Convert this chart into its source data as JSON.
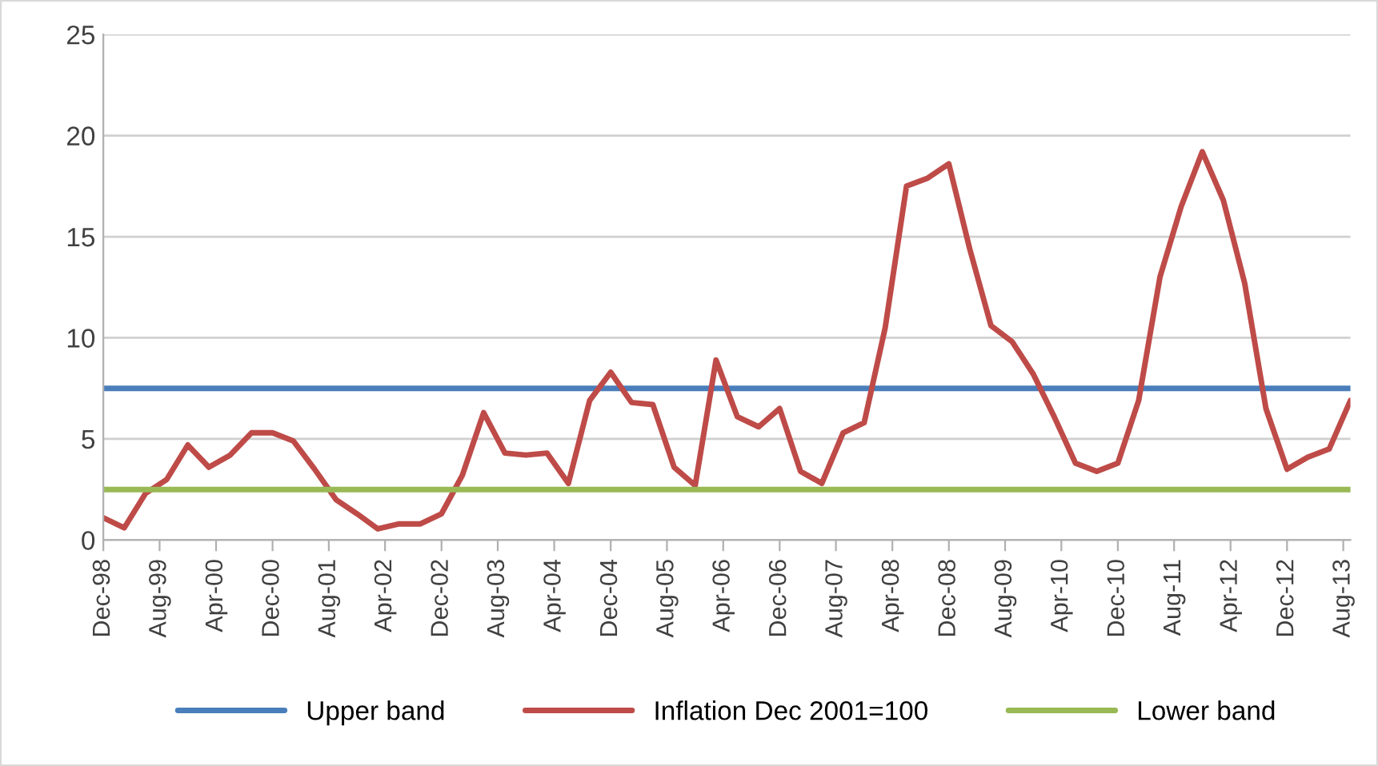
{
  "chart_data": {
    "type": "line",
    "x": [
      "1998-12",
      "1999-03",
      "1999-06",
      "1999-09",
      "1999-12",
      "2000-03",
      "2000-06",
      "2000-09",
      "2000-12",
      "2001-03",
      "2001-06",
      "2001-09",
      "2001-12",
      "2002-03",
      "2002-06",
      "2002-09",
      "2002-12",
      "2003-03",
      "2003-06",
      "2003-09",
      "2003-12",
      "2004-03",
      "2004-06",
      "2004-09",
      "2004-12",
      "2005-03",
      "2005-06",
      "2005-09",
      "2005-12",
      "2006-03",
      "2006-06",
      "2006-09",
      "2006-12",
      "2007-03",
      "2007-06",
      "2007-09",
      "2007-12",
      "2008-03",
      "2008-06",
      "2008-09",
      "2008-12",
      "2009-03",
      "2009-06",
      "2009-09",
      "2009-12",
      "2010-03",
      "2010-06",
      "2010-09",
      "2010-12",
      "2011-03",
      "2011-06",
      "2011-09",
      "2011-12",
      "2012-03",
      "2012-06",
      "2012-09",
      "2012-12",
      "2013-03",
      "2013-06",
      "2013-09"
    ],
    "series": [
      {
        "name": "Upper band",
        "color": "#4a7ebb",
        "x": [
          "1998-12",
          "2013-09"
        ],
        "values": [
          7.5,
          7.5
        ]
      },
      {
        "name": "Inflation Dec 2001=100",
        "color": "#be4b48",
        "values": [
          1.1,
          0.6,
          2.3,
          3.0,
          4.7,
          3.6,
          4.2,
          5.3,
          5.3,
          4.9,
          3.5,
          2.0,
          1.3,
          0.55,
          0.8,
          0.8,
          1.3,
          3.2,
          6.3,
          4.3,
          4.2,
          4.3,
          2.8,
          6.9,
          8.3,
          6.8,
          6.7,
          3.6,
          2.7,
          8.9,
          6.1,
          5.6,
          6.5,
          3.4,
          2.8,
          5.3,
          5.8,
          10.5,
          17.5,
          17.9,
          18.6,
          14.4,
          10.6,
          9.8,
          8.2,
          6.1,
          3.8,
          3.4,
          3.8,
          6.9,
          13.0,
          16.5,
          19.2,
          16.8,
          12.7,
          6.5,
          3.5,
          4.1,
          4.5,
          6.9
        ]
      },
      {
        "name": "Lower band",
        "color": "#98b954",
        "x": [
          "1998-12",
          "2013-09"
        ],
        "values": [
          2.5,
          2.5
        ]
      }
    ],
    "xlim": [
      "1998-12",
      "2013-09"
    ],
    "xticks": [
      {
        "value": "1998-12",
        "label": "Dec-98"
      },
      {
        "value": "1999-08",
        "label": "Aug-99"
      },
      {
        "value": "2000-04",
        "label": "Apr-00"
      },
      {
        "value": "2000-12",
        "label": "Dec-00"
      },
      {
        "value": "2001-08",
        "label": "Aug-01"
      },
      {
        "value": "2002-04",
        "label": "Apr-02"
      },
      {
        "value": "2002-12",
        "label": "Dec-02"
      },
      {
        "value": "2003-08",
        "label": "Aug-03"
      },
      {
        "value": "2004-04",
        "label": "Apr-04"
      },
      {
        "value": "2004-12",
        "label": "Dec-04"
      },
      {
        "value": "2005-08",
        "label": "Aug-05"
      },
      {
        "value": "2006-04",
        "label": "Apr-06"
      },
      {
        "value": "2006-12",
        "label": "Dec-06"
      },
      {
        "value": "2007-08",
        "label": "Aug-07"
      },
      {
        "value": "2008-04",
        "label": "Apr-08"
      },
      {
        "value": "2008-12",
        "label": "Dec-08"
      },
      {
        "value": "2009-08",
        "label": "Aug-09"
      },
      {
        "value": "2010-04",
        "label": "Apr-10"
      },
      {
        "value": "2010-12",
        "label": "Dec-10"
      },
      {
        "value": "2011-08",
        "label": "Aug-11"
      },
      {
        "value": "2012-04",
        "label": "Apr-12"
      },
      {
        "value": "2012-12",
        "label": "Dec-12"
      },
      {
        "value": "2013-08",
        "label": "Aug-13"
      }
    ],
    "ylim": [
      0,
      25
    ],
    "yticks": [
      0,
      5,
      10,
      15,
      20,
      25
    ],
    "grid": "y",
    "legend": "bottom",
    "marker": "none",
    "line_style": "solid"
  }
}
